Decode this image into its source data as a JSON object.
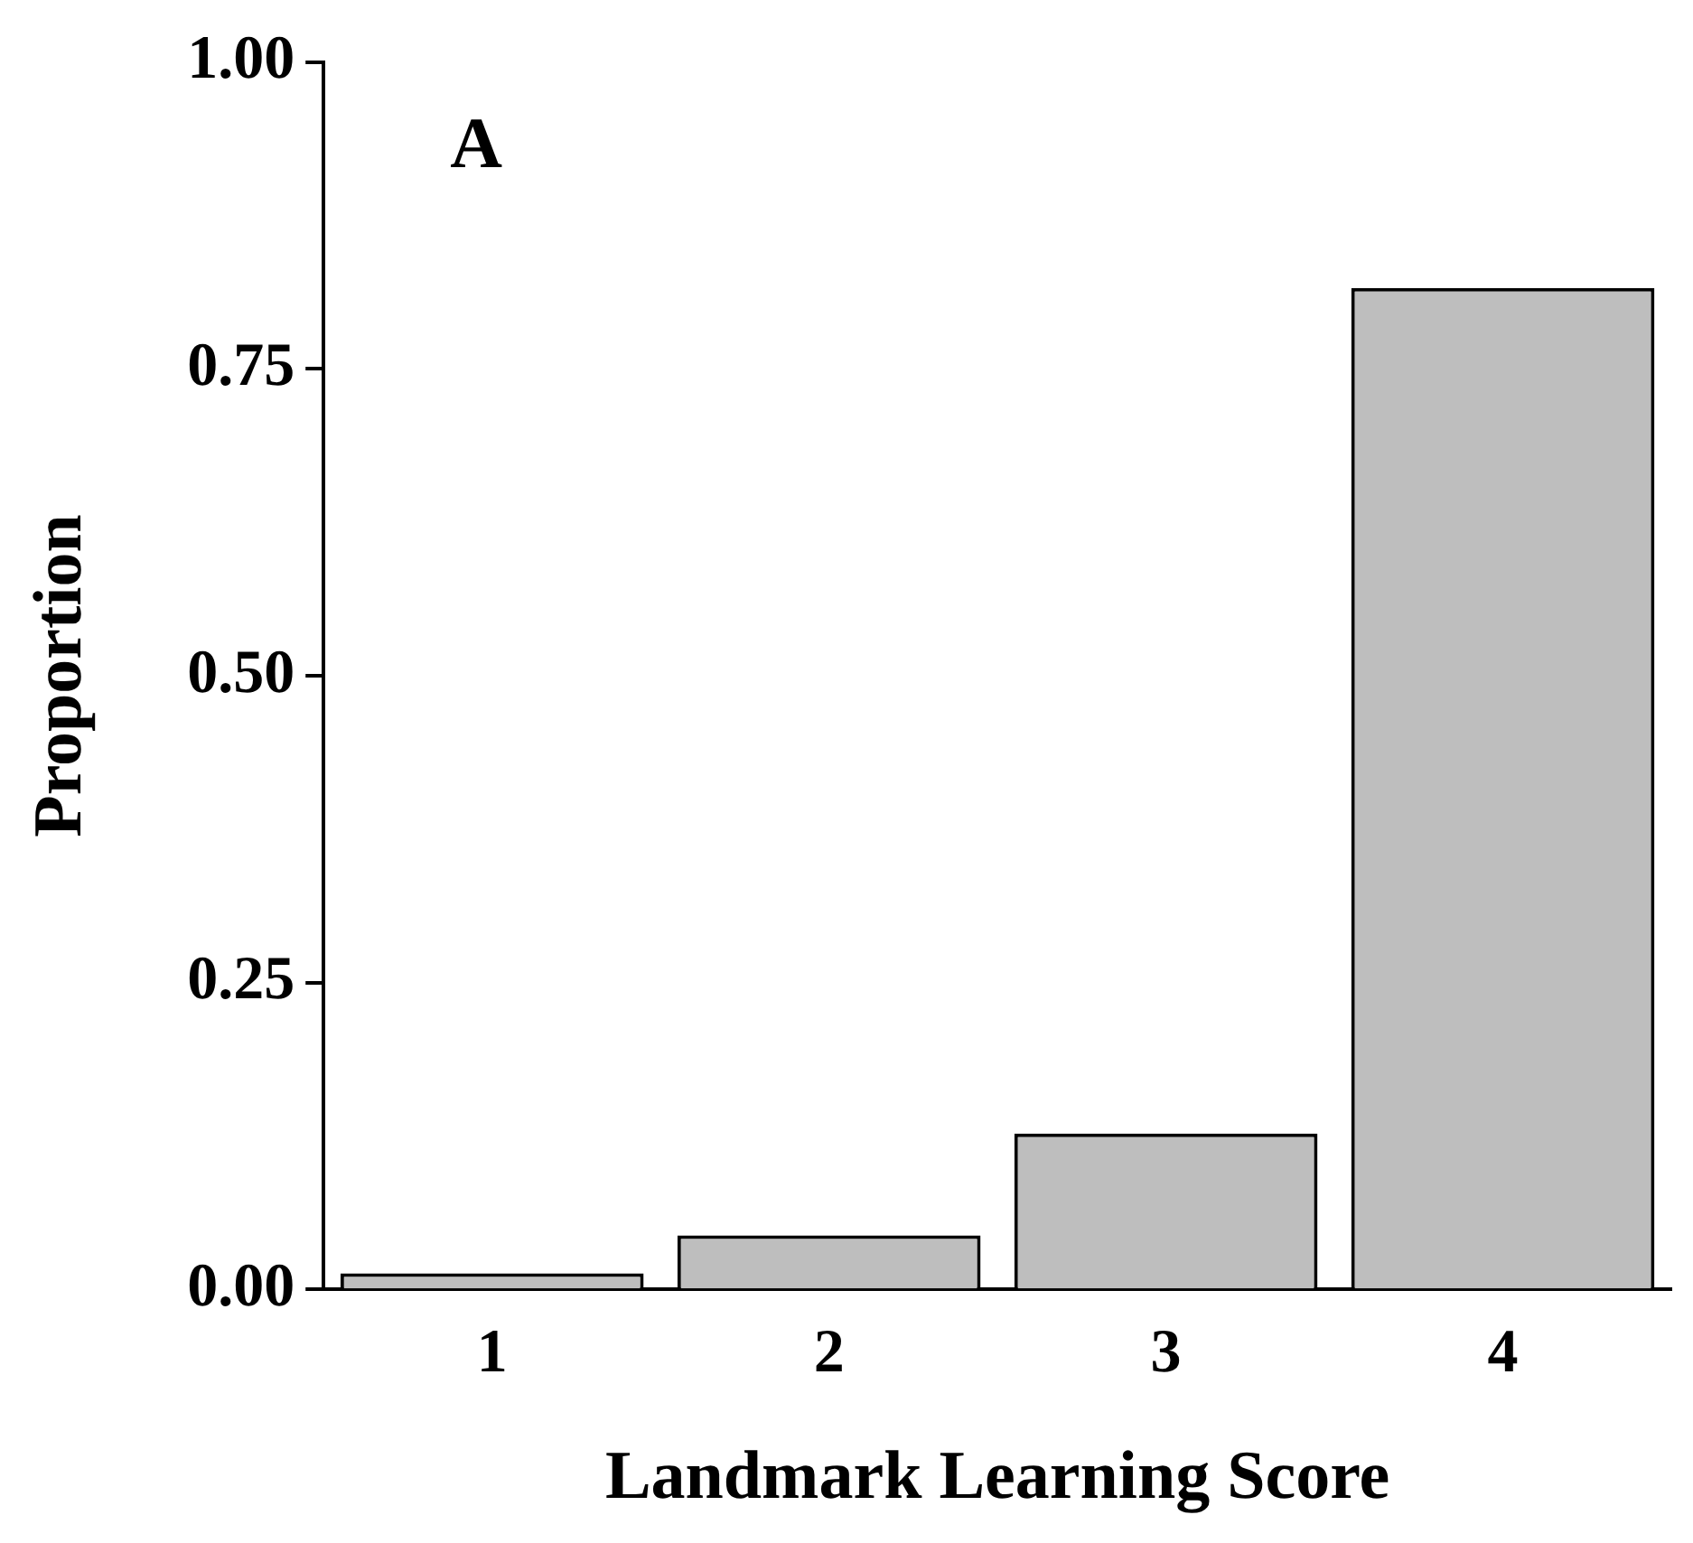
{
  "chart_data": {
    "type": "bar",
    "xlabel": "Landmark Learning Score",
    "ylabel": "Proportion",
    "annotations": [
      "A"
    ],
    "categories": [
      "1",
      "2",
      "3",
      "4"
    ],
    "values": [
      0.013,
      0.044,
      0.127,
      0.816
    ],
    "color": "#bebebe",
    "ylim": [
      0,
      1
    ],
    "yticks": [
      {
        "value": 0,
        "label": "0.00"
      },
      {
        "value": 0.25,
        "label": "0.25"
      },
      {
        "value": 0.5,
        "label": "0.50"
      },
      {
        "value": 0.75,
        "label": "0.75"
      },
      {
        "value": 1,
        "label": "1.00"
      }
    ],
    "grid": false,
    "legend": false
  }
}
